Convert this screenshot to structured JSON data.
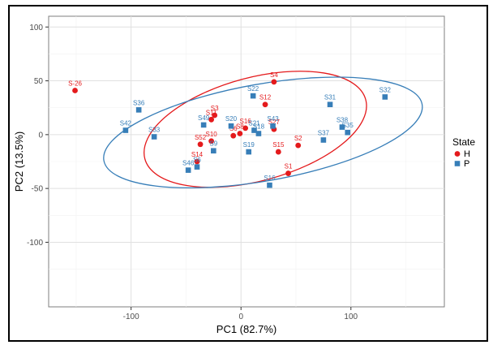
{
  "chart_data": {
    "type": "scatter",
    "xlabel": "PC1 (82.7%)",
    "ylabel": "PC2 (13.5%)",
    "xlim": [
      -175,
      185
    ],
    "ylim": [
      -160,
      110
    ],
    "x_ticks": [
      -100,
      0,
      100
    ],
    "y_ticks": [
      -100,
      -50,
      0,
      50,
      100
    ],
    "grid": true,
    "legend": {
      "title": "State",
      "position": "right",
      "entries": [
        {
          "label": "H",
          "color": "#e41a1c",
          "shape": "circle"
        },
        {
          "label": "P",
          "color": "#377eb8",
          "shape": "square"
        }
      ]
    },
    "series": [
      {
        "name": "H",
        "color": "#e41a1c",
        "shape": "circle",
        "points": [
          {
            "label": "S-26",
            "x": -151,
            "y": 41
          },
          {
            "label": "S4",
            "x": 30,
            "y": 49
          },
          {
            "label": "S12",
            "x": 22,
            "y": 28
          },
          {
            "label": "S27",
            "x": 30,
            "y": 5
          },
          {
            "label": "S2",
            "x": 52,
            "y": -10
          },
          {
            "label": "S15",
            "x": 34,
            "y": -16
          },
          {
            "label": "S1",
            "x": 43,
            "y": -36
          },
          {
            "label": "S14",
            "x": -40,
            "y": -25
          },
          {
            "label": "S52",
            "x": -37,
            "y": -9
          },
          {
            "label": "S10",
            "x": -27,
            "y": -6
          },
          {
            "label": "S11",
            "x": -27,
            "y": 14
          },
          {
            "label": "S3",
            "x": -24,
            "y": 18
          },
          {
            "label": "S6",
            "x": -7,
            "y": -1
          },
          {
            "label": "S8",
            "x": -1,
            "y": 1
          },
          {
            "label": "S16",
            "x": 4,
            "y": 6
          }
        ]
      },
      {
        "name": "P",
        "color": "#377eb8",
        "shape": "square",
        "points": [
          {
            "label": "S32",
            "x": 131,
            "y": 35
          },
          {
            "label": "S31",
            "x": 81,
            "y": 28
          },
          {
            "label": "S38",
            "x": 92,
            "y": 7
          },
          {
            "label": "S35",
            "x": 97,
            "y": 2
          },
          {
            "label": "S37",
            "x": 75,
            "y": -5
          },
          {
            "label": "S36",
            "x": -93,
            "y": 23
          },
          {
            "label": "S42",
            "x": -105,
            "y": 4
          },
          {
            "label": "S33",
            "x": -79,
            "y": -2
          },
          {
            "label": "S22",
            "x": 11,
            "y": 36
          },
          {
            "label": "S43",
            "x": 29,
            "y": 8
          },
          {
            "label": "S21",
            "x": 12,
            "y": 4
          },
          {
            "label": "S18",
            "x": 16,
            "y": 1
          },
          {
            "label": "S20",
            "x": -9,
            "y": 8
          },
          {
            "label": "S49",
            "x": -34,
            "y": 9
          },
          {
            "label": "S19",
            "x": 7,
            "y": -16
          },
          {
            "label": "S16",
            "x": 26,
            "y": -47
          },
          {
            "label": "S46",
            "x": -48,
            "y": -33
          },
          {
            "label": "S6",
            "x": -40,
            "y": -30
          },
          {
            "label": "S9",
            "x": -25,
            "y": -15
          }
        ]
      }
    ],
    "ellipses": [
      {
        "name": "H",
        "color": "#e41a1c",
        "cx": 13,
        "cy": 5,
        "rx": 104,
        "ry": 48,
        "angle_deg": -15
      },
      {
        "name": "P",
        "color": "#377eb8",
        "cx": 20,
        "cy": 2,
        "rx": 147,
        "ry": 45,
        "angle_deg": -10
      }
    ]
  }
}
